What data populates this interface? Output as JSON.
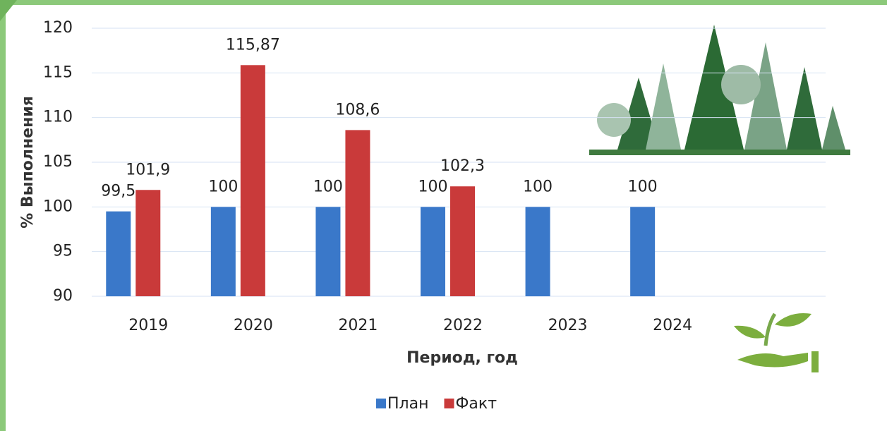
{
  "chart_data": {
    "type": "bar",
    "categories": [
      "2019",
      "2020",
      "2021",
      "2022",
      "2023",
      "2024",
      null
    ],
    "series": [
      {
        "name": "План",
        "color": "#3a78c9",
        "values": [
          99.5,
          100,
          100,
          100,
          100,
          100,
          null
        ],
        "value_labels": [
          "99,5",
          "100",
          "100",
          "100",
          "100",
          "100",
          null
        ]
      },
      {
        "name": "Факт",
        "color": "#c93a3a",
        "values": [
          101.9,
          115.87,
          108.6,
          102.3,
          null,
          null,
          null
        ],
        "value_labels": [
          "101,9",
          "115,87",
          "108,6",
          "102,3",
          null,
          null,
          null
        ]
      }
    ],
    "ylim": [
      90,
      120
    ],
    "yticks": [
      90,
      95,
      100,
      105,
      110,
      115,
      120
    ],
    "grid": true,
    "x_label": "Период, год",
    "y_label": "% Выполнения",
    "legend": "bottom"
  }
}
